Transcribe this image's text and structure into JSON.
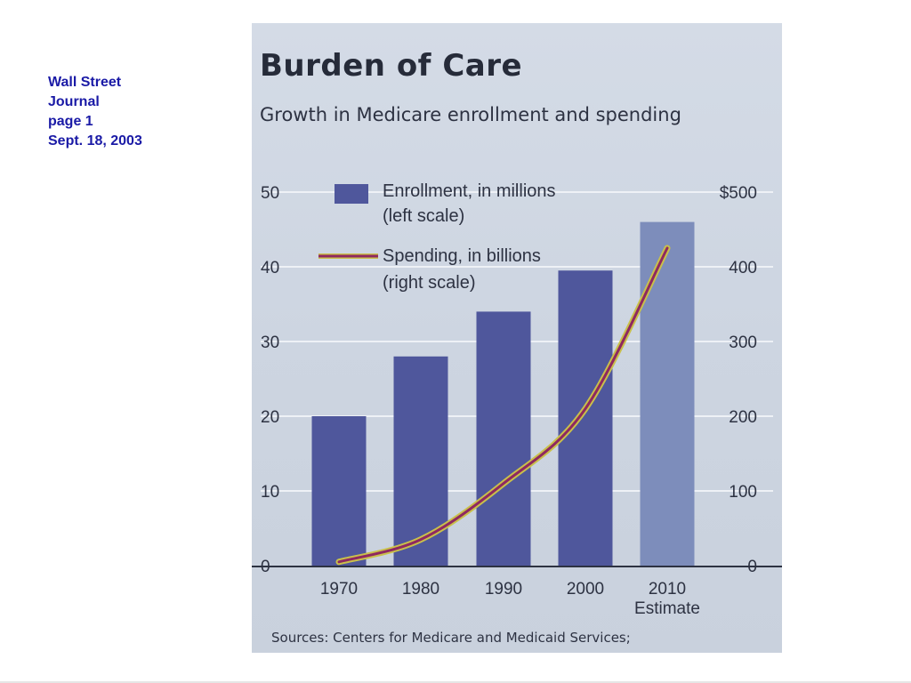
{
  "caption": {
    "line1": "Wall Street",
    "line2": "Journal",
    "line3": "page 1",
    "line4": "Sept. 18, 2003"
  },
  "chart_data": {
    "type": "bar",
    "title": "Burden of Care",
    "subtitle": "Growth in Medicare enrollment and spending",
    "source": "Sources: Centers for Medicare and Medicaid Services;",
    "categories": [
      "1970",
      "1980",
      "1990",
      "2000",
      "2010"
    ],
    "category_sublabels": [
      "",
      "",
      "",
      "",
      "Estimate"
    ],
    "left_axis": {
      "ticks": [
        "0",
        "10",
        "20",
        "30",
        "40",
        "50"
      ],
      "ylim": [
        0,
        50
      ]
    },
    "right_axis": {
      "ticks": [
        "0",
        "100",
        "200",
        "300",
        "400",
        "$500"
      ],
      "ylim": [
        0,
        500
      ]
    },
    "grid": true,
    "legend_position": "top",
    "series": [
      {
        "name": "Enrollment, in millions",
        "name_note": "(left scale)",
        "kind": "bar",
        "axis": "left",
        "values": [
          20,
          28,
          34,
          39.5,
          46
        ],
        "colors": [
          "#4f579c",
          "#4f579c",
          "#4f579c",
          "#4f579c",
          "#7d8dbb"
        ]
      },
      {
        "name": "Spending, in billions",
        "name_note": "(right scale)",
        "kind": "line",
        "axis": "right",
        "values": [
          5,
          35,
          110,
          210,
          425
        ],
        "color": "#8f2860",
        "glow_color": "#c9c04a"
      }
    ]
  }
}
